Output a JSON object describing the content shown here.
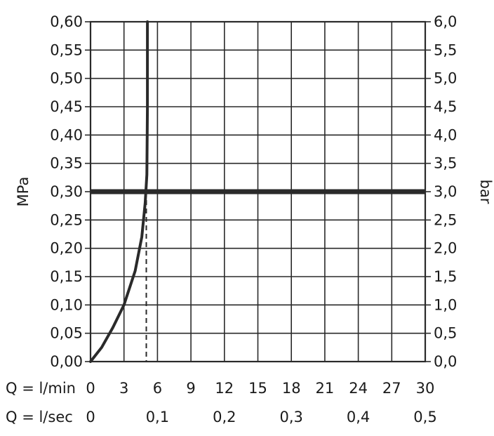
{
  "chart_data": {
    "type": "line",
    "left_axis": {
      "label": "MPa",
      "range": [
        0,
        0.6
      ],
      "ticks": [
        "0,00",
        "0,05",
        "0,10",
        "0,15",
        "0,20",
        "0,25",
        "0,30",
        "0,35",
        "0,40",
        "0,45",
        "0,50",
        "0,55",
        "0,60"
      ]
    },
    "right_axis": {
      "label": "bar",
      "range": [
        0,
        6
      ],
      "ticks": [
        "0,0",
        "0,5",
        "1,0",
        "1,5",
        "2,0",
        "2,5",
        "3,0",
        "3,5",
        "4,0",
        "4,5",
        "5,0",
        "5,5",
        "6,0"
      ]
    },
    "x_axis_lpm": {
      "label": "Q = l/min",
      "range": [
        0,
        30
      ],
      "ticks": [
        "0",
        "3",
        "6",
        "9",
        "12",
        "15",
        "18",
        "21",
        "24",
        "27",
        "30"
      ]
    },
    "x_axis_lps": {
      "label": "Q = l/sec",
      "range": [
        0,
        0.5
      ],
      "ticks": [
        "0",
        "0,1",
        "0,2",
        "0,3",
        "0,4",
        "0,5"
      ]
    },
    "grid": true,
    "series": [
      {
        "x": [
          0,
          1,
          2,
          3,
          4,
          4.6,
          4.9,
          5.05,
          5.1,
          5.1
        ],
        "y": [
          0,
          0.025,
          0.06,
          0.1,
          0.16,
          0.22,
          0.28,
          0.33,
          0.45,
          0.6
        ]
      }
    ],
    "reference_line_y": 0.3,
    "reference_marker_x": 5,
    "color": "#2a2a2a"
  }
}
